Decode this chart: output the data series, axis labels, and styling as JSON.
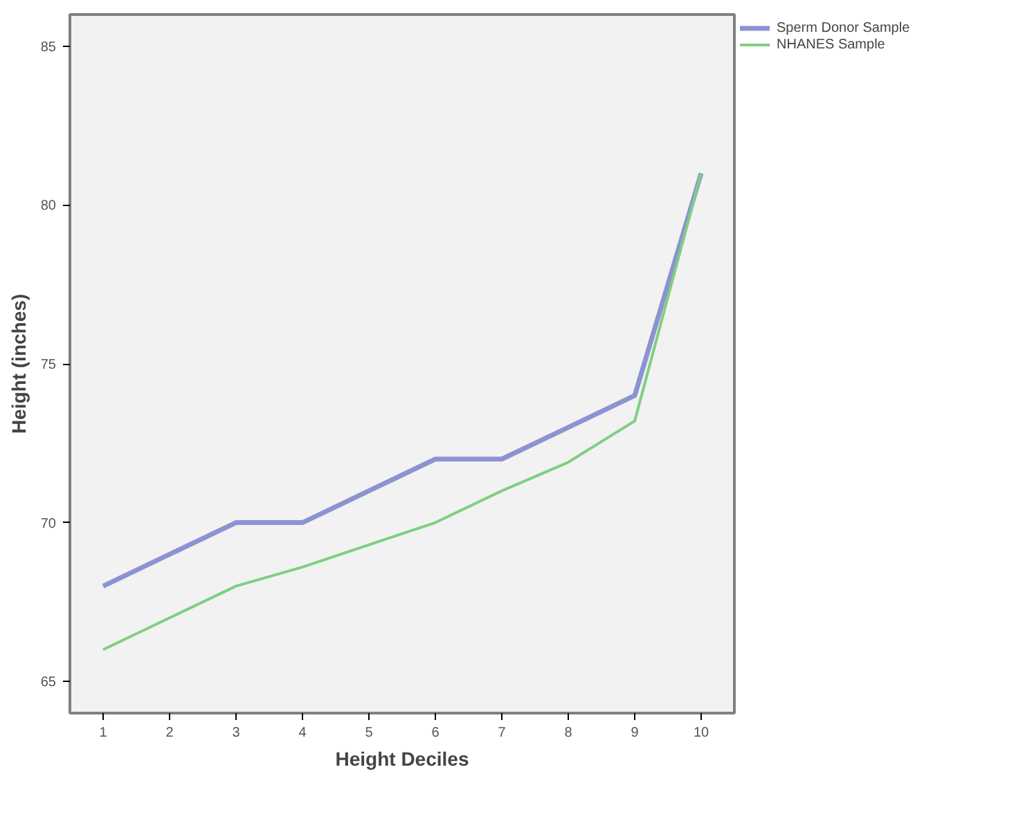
{
  "chart_data": {
    "type": "line",
    "xlabel": "Height Deciles",
    "ylabel": "Height (inches)",
    "x": [
      1,
      2,
      3,
      4,
      5,
      6,
      7,
      8,
      9,
      10
    ],
    "series": [
      {
        "name": "Sperm Donor Sample",
        "color": "#8c93d2",
        "values": [
          68,
          69,
          70,
          70,
          71,
          72,
          72,
          73,
          74,
          81
        ]
      },
      {
        "name": "NHANES Sample",
        "color": "#7fcf80",
        "values": [
          66,
          67,
          68,
          68.6,
          69.3,
          70,
          71,
          71.9,
          73.2,
          81
        ]
      }
    ],
    "xlim": [
      0.5,
      10.5
    ],
    "ylim": [
      64,
      86
    ],
    "xticks": [
      1,
      2,
      3,
      4,
      5,
      6,
      7,
      8,
      9,
      10
    ],
    "yticks": [
      65,
      70,
      75,
      80,
      85
    ],
    "grid": false,
    "legend": "top right",
    "marker": "none",
    "line_style": "solid"
  }
}
